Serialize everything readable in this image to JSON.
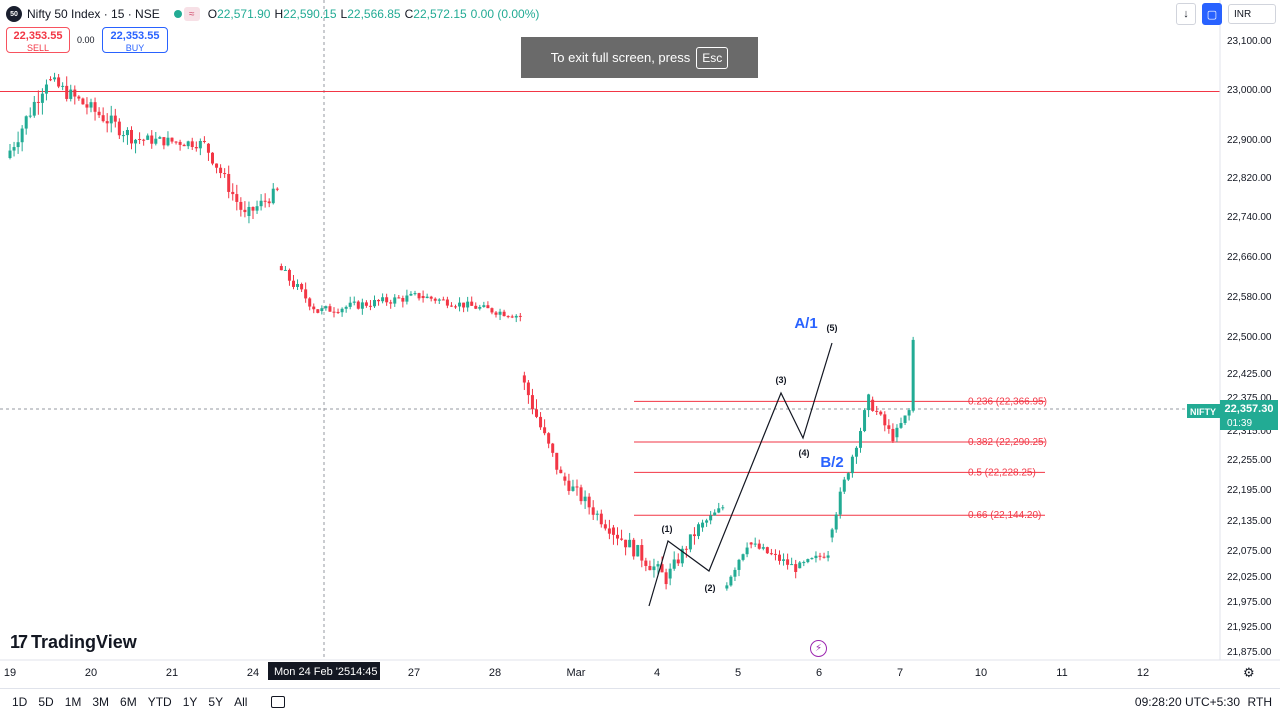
{
  "header": {
    "symbol_logo": "50",
    "symbol_title": "Nifty 50 Index · 15 · NSE",
    "wave_badge": "≈",
    "ohlc": {
      "o_label": "O",
      "o": "22,571.90",
      "h_label": "H",
      "h": "22,590.15",
      "l_label": "L",
      "l": "22,566.85",
      "c_label": "C",
      "c": "22,572.15",
      "change": "0.00 (0.00%)"
    }
  },
  "trade": {
    "sell_price": "22,353.55",
    "sell_label": "SELL",
    "spread": "0.00",
    "buy_price": "22,353.55",
    "buy_label": "BUY"
  },
  "toolbar_right": {
    "download_icon": "down-arrow-icon",
    "snapshot_icon": "camera-icon",
    "currency": "INR"
  },
  "fullscreen_toast": {
    "text": "To exit full screen, press",
    "key": "Esc"
  },
  "branding": {
    "logo_mark": "17",
    "logo_text": "TradingView"
  },
  "bottom_bar": {
    "ranges": [
      "1D",
      "5D",
      "1M",
      "3M",
      "6M",
      "YTD",
      "1Y",
      "5Y",
      "All"
    ],
    "clock": "09:28:20 UTC+5:30",
    "session": "RTH"
  },
  "colors": {
    "up": "#22ab94",
    "down": "#f23645",
    "fib": "#f23645",
    "wave_label_blue": "#2962ff",
    "price_tag": "#22ab94"
  },
  "chart_data": {
    "type": "candlestick",
    "symbol": "Nifty 50 Index",
    "interval": "15",
    "exchange": "NSE",
    "y_axis": {
      "ticks": [
        23100,
        23000,
        22900,
        22820,
        22740,
        22660,
        22580,
        22500,
        22425,
        22375,
        22315,
        22255,
        22195,
        22135,
        22075,
        22025,
        21975,
        21925,
        21875
      ],
      "tick_labels": [
        "23,100.00",
        "23,000.00",
        "22,900.00",
        "22,820.00",
        "22,740.00",
        "22,660.00",
        "22,580.00",
        "22,500.00",
        "22,425.00",
        "22,375.00",
        "22,315.00",
        "22,255.00",
        "22,195.00",
        "22,135.00",
        "22,075.00",
        "22,025.00",
        "21,975.00",
        "21,925.00",
        "21,875.00"
      ]
    },
    "x_axis": {
      "tick_labels": [
        "19",
        "20",
        "21",
        "24",
        "27",
        "28",
        "Mar",
        "4",
        "5",
        "6",
        "7",
        "10",
        "11",
        "12"
      ],
      "crosshair_label": "Mon 24 Feb '25",
      "crosshair_time": "14:45"
    },
    "last_price": {
      "symbol": "NIFTY",
      "value": "22,357.30",
      "countdown": "01:39"
    },
    "horizontal_line": {
      "value": 22995
    },
    "fib_levels": [
      {
        "ratio": "0.236",
        "value": 22366.95,
        "label": "0.236 (22,366.95)"
      },
      {
        "ratio": "0.382",
        "value": 22290.25,
        "label": "0.382 (22,290.25)"
      },
      {
        "ratio": "0.5",
        "value": 22228.25,
        "label": "0.5 (22,228.25)"
      },
      {
        "ratio": "0.66",
        "value": 22144.2,
        "label": "0.66 (22,144.20)"
      }
    ],
    "wave_labels": {
      "small": [
        "(1)",
        "(2)",
        "(3)",
        "(4)",
        "(5)"
      ],
      "large": [
        "A/1",
        "B/2"
      ]
    },
    "ohlc_segments": [
      {
        "from": 22860,
        "to": 23020,
        "n": 10,
        "vol": 35
      },
      {
        "from": 23020,
        "to": 22900,
        "n": 22,
        "vol": 30
      },
      {
        "from": 22900,
        "to": 22890,
        "n": 17,
        "vol": 22
      },
      {
        "from": 22890,
        "to": 22740,
        "n": 10,
        "vol": 28
      },
      {
        "from": 22740,
        "to": 22790,
        "n": 8,
        "vol": 25
      },
      {
        "from": 22640,
        "to": 22550,
        "n": 10,
        "vol": 22
      },
      {
        "from": 22550,
        "to": 22580,
        "n": 25,
        "vol": 18
      },
      {
        "from": 22580,
        "to": 22540,
        "n": 25,
        "vol": 16
      },
      {
        "from": 22420,
        "to": 22220,
        "n": 10,
        "vol": 30
      },
      {
        "from": 22220,
        "to": 22120,
        "n": 12,
        "vol": 25
      },
      {
        "from": 22120,
        "to": 22020,
        "n": 14,
        "vol": 30
      },
      {
        "from": 22020,
        "to": 22120,
        "n": 8,
        "vol": 25
      },
      {
        "from": 22120,
        "to": 22160,
        "n": 6,
        "vol": 15
      },
      {
        "from": 22000,
        "to": 22090,
        "n": 6,
        "vol": 25
      },
      {
        "from": 22090,
        "to": 22040,
        "n": 12,
        "vol": 18
      },
      {
        "from": 22040,
        "to": 22070,
        "n": 8,
        "vol": 15
      },
      {
        "from": 22100,
        "to": 22370,
        "n": 10,
        "vol": 22
      },
      {
        "from": 22370,
        "to": 22300,
        "n": 6,
        "vol": 20
      },
      {
        "from": 22300,
        "to": 22350,
        "n": 4,
        "vol": 15
      },
      {
        "from": 22350,
        "to": 22490,
        "n": 1,
        "vol": 30
      }
    ]
  }
}
